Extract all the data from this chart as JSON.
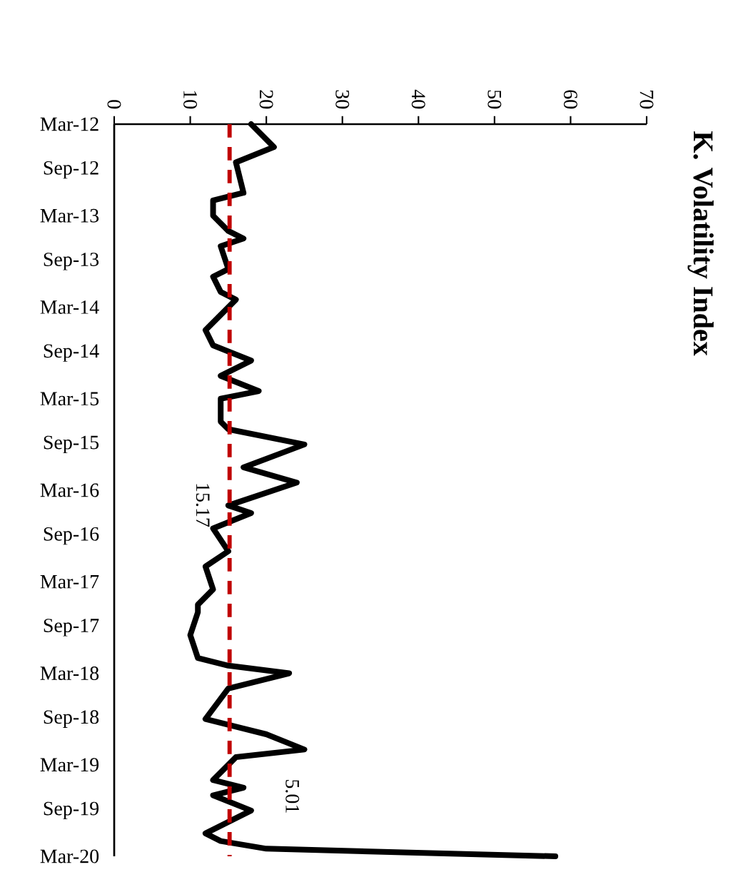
{
  "chart_data": {
    "type": "line",
    "orientation": "horizontal",
    "title": "K. Volatility Index",
    "x": [
      "2012-03",
      "2012-06",
      "2012-08",
      "2012-12",
      "2013-01",
      "2013-03",
      "2013-05",
      "2013-06",
      "2013-07",
      "2013-10",
      "2013-11",
      "2014-01",
      "2014-02",
      "2014-06",
      "2014-08",
      "2014-10",
      "2014-12",
      "2015-02",
      "2015-03",
      "2015-06",
      "2015-07",
      "2015-09",
      "2015-12",
      "2016-02",
      "2016-05",
      "2016-06",
      "2016-08",
      "2016-11",
      "2017-01",
      "2017-04",
      "2017-06",
      "2017-07",
      "2017-10",
      "2018-01",
      "2018-02",
      "2018-03",
      "2018-04",
      "2018-05",
      "2018-09",
      "2018-11",
      "2019-01",
      "2019-02",
      "2019-05",
      "2019-06",
      "2019-07",
      "2019-09",
      "2019-12",
      "2020-01",
      "2020-02",
      "2020-03"
    ],
    "series": [
      {
        "color": "#000000",
        "values": [
          18,
          21,
          16,
          17,
          13,
          13,
          15,
          17,
          14,
          15,
          13,
          14,
          16,
          12,
          13,
          18,
          14,
          19,
          14,
          14,
          15,
          25,
          17,
          24,
          15,
          18,
          13,
          15,
          12,
          13,
          11,
          11,
          10,
          11,
          15,
          23,
          19,
          15,
          12,
          20,
          25,
          16,
          13,
          17,
          13,
          18,
          12,
          14,
          20,
          58
        ]
      }
    ],
    "ylim": [
      "2020-03",
      "2012-03"
    ],
    "yticks": [
      {
        "value": "2012-03",
        "label": "Mar-12"
      },
      {
        "value": "2012-09",
        "label": "Sep-12"
      },
      {
        "value": "2013-03",
        "label": "Mar-13"
      },
      {
        "value": "2013-09",
        "label": "Sep-13"
      },
      {
        "value": "2014-03",
        "label": "Mar-14"
      },
      {
        "value": "2014-09",
        "label": "Sep-14"
      },
      {
        "value": "2015-03",
        "label": "Mar-15"
      },
      {
        "value": "2015-09",
        "label": "Sep-15"
      },
      {
        "value": "2016-03",
        "label": "Mar-16"
      },
      {
        "value": "2016-09",
        "label": "Sep-16"
      },
      {
        "value": "2017-03",
        "label": "Mar-17"
      },
      {
        "value": "2017-09",
        "label": "Sep-17"
      },
      {
        "value": "2018-03",
        "label": "Mar-18"
      },
      {
        "value": "2018-09",
        "label": "Sep-18"
      },
      {
        "value": "2019-03",
        "label": "Mar-19"
      },
      {
        "value": "2019-09",
        "label": "Sep-19"
      },
      {
        "value": "2020-03",
        "label": "Mar-20"
      }
    ],
    "xlim": [
      0,
      70
    ],
    "xticks": [
      0,
      10,
      20,
      30,
      40,
      50,
      60,
      70
    ],
    "ref_lines": [
      {
        "axis": "x",
        "value": 15.17,
        "label": "15.17",
        "color": "#c00000",
        "line_style": "dashed"
      }
    ],
    "annotations": [
      "5.01"
    ],
    "line_style": "solid",
    "marker": "none"
  }
}
